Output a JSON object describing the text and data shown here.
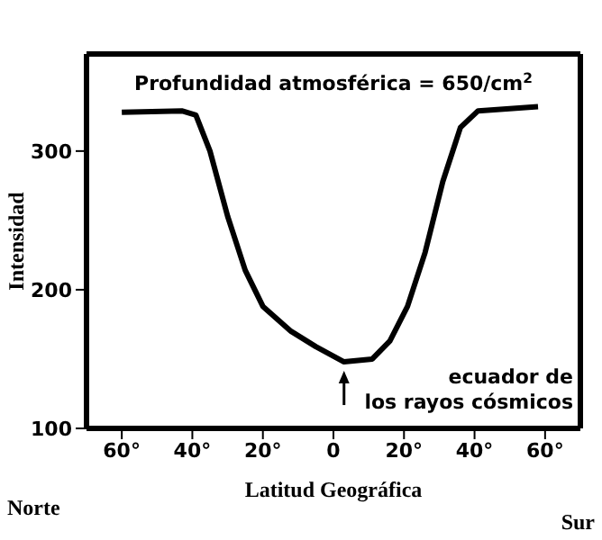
{
  "chart_data": {
    "type": "line",
    "title": "Profundidad atmosférica = 650/cm$^{2}$",
    "xlabel": "Latitud Geográfica",
    "ylabel": "Intensidad",
    "x": [
      -60,
      -43,
      -39,
      -35,
      -30,
      -25,
      -20,
      -12,
      -5,
      3,
      11,
      16,
      21,
      26,
      31,
      36,
      41,
      58
    ],
    "series": [
      {
        "color": "#000000",
        "values": [
          328,
          329,
          326,
          300,
          253,
          214,
          188,
          170,
          159,
          148,
          150,
          163,
          188,
          227,
          278,
          317,
          329,
          332
        ]
      }
    ],
    "xlim": [
      -70,
      70
    ],
    "ylim": [
      100,
      370
    ],
    "xticks": [
      {
        "value": -60,
        "label": "60°"
      },
      {
        "value": -40,
        "label": "40°"
      },
      {
        "value": -20,
        "label": "20°"
      },
      0,
      {
        "value": 20,
        "label": "20°"
      },
      {
        "value": 40,
        "label": "40°"
      },
      {
        "value": 60,
        "label": "60°"
      }
    ],
    "yticks": [
      100,
      200,
      300
    ],
    "marker": "none",
    "line_style": "solid",
    "annotations": [
      {
        "text": "ecuador de\nlos rayos cósmicos",
        "x": 3,
        "y": 148
      },
      "Norte",
      "Sur"
    ]
  }
}
